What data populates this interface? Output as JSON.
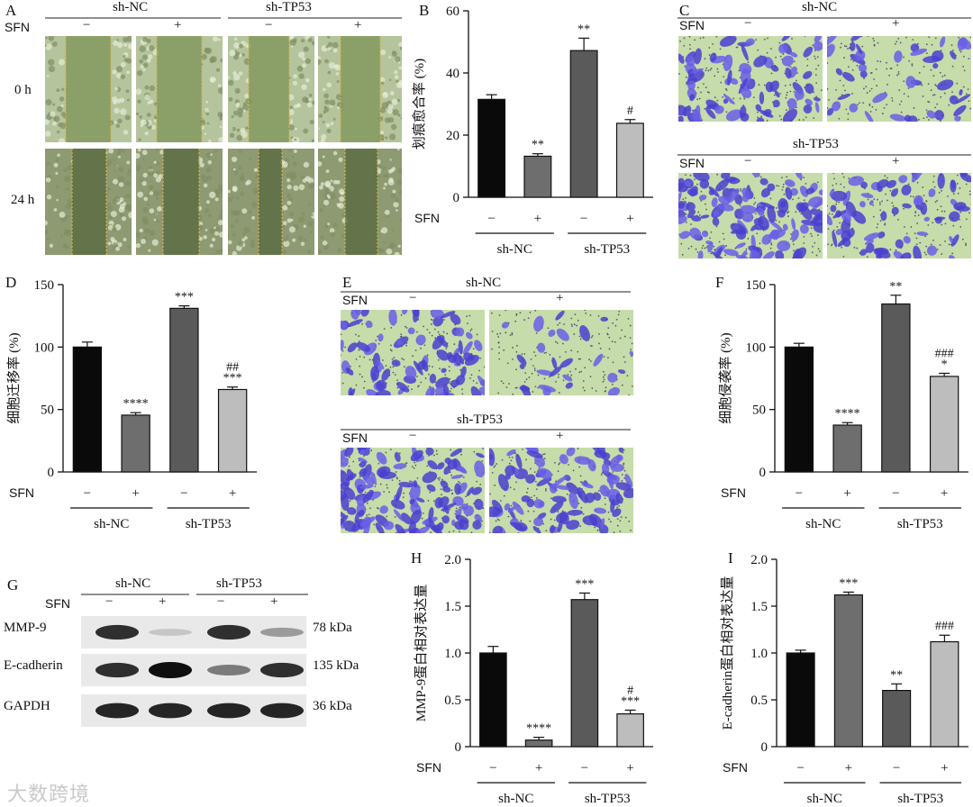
{
  "panels": {
    "A": {
      "letter": "A",
      "sfn_label": "SFN",
      "groups": [
        "sh-NC",
        "sh-TP53"
      ],
      "signs": [
        "−",
        "+",
        "−",
        "+"
      ],
      "row_labels": [
        "0 h",
        "24 h"
      ]
    },
    "C": {
      "letter": "C",
      "groups": [
        "sh-NC",
        "sh-TP53"
      ],
      "sfn_label": "SFN",
      "signs": [
        "−",
        "+"
      ]
    },
    "E": {
      "letter": "E",
      "groups": [
        "sh-NC",
        "sh-TP53"
      ],
      "sfn_label": "SFN",
      "signs": [
        "−",
        "+"
      ]
    },
    "G": {
      "letter": "G",
      "groups": [
        "sh-NC",
        "sh-TP53"
      ],
      "sfn_label": "SFN",
      "signs": [
        "−",
        "+",
        "−",
        "+"
      ],
      "bands": [
        {
          "protein": "MMP-9",
          "size": "78 kDa",
          "intensity": [
            0.85,
            0.15,
            0.85,
            0.35
          ]
        },
        {
          "protein": "E-cadherin",
          "size": "135 kDa",
          "intensity": [
            0.85,
            1.0,
            0.5,
            0.85
          ]
        },
        {
          "protein": "GAPDH",
          "size": "36 kDa",
          "intensity": [
            0.9,
            0.9,
            0.9,
            0.9
          ]
        }
      ]
    }
  },
  "chart_data": [
    {
      "id": "B",
      "letter": "B",
      "type": "bar",
      "ylabel": "划痕愈合率 (%)",
      "ylim": [
        0,
        60
      ],
      "yticks": [
        0,
        20,
        40,
        60
      ],
      "tick_labels": [
        "0",
        "20",
        "40",
        "60"
      ],
      "categories": [
        "sh-NC SFN−",
        "sh-NC SFN+",
        "sh-TP53 SFN−",
        "sh-TP53 SFN+"
      ],
      "values": [
        31.5,
        13.2,
        47.2,
        23.8
      ],
      "errors": [
        1.5,
        0.8,
        4.0,
        1.2
      ],
      "bar_colors": [
        "#0a0a0a",
        "#6e6e6e",
        "#5a5a5a",
        "#bdbdbd"
      ],
      "annotations": [
        [],
        [
          "**"
        ],
        [
          "**"
        ],
        [
          "#"
        ]
      ],
      "sfn_label": "SFN",
      "signs": [
        "−",
        "+",
        "−",
        "+"
      ],
      "groups": [
        "sh-NC",
        "sh-TP53"
      ]
    },
    {
      "id": "D",
      "letter": "D",
      "type": "bar",
      "ylabel": "细胞迁移率 (%)",
      "ylim": [
        0,
        150
      ],
      "yticks": [
        0,
        50,
        100,
        150
      ],
      "tick_labels": [
        "0",
        "50",
        "100",
        "150"
      ],
      "categories": [
        "sh-NC SFN−",
        "sh-NC SFN+",
        "sh-TP53 SFN−",
        "sh-TP53 SFN+"
      ],
      "values": [
        100,
        45.5,
        131,
        66
      ],
      "errors": [
        4,
        2,
        2,
        2
      ],
      "bar_colors": [
        "#0a0a0a",
        "#6e6e6e",
        "#5a5a5a",
        "#bdbdbd"
      ],
      "annotations": [
        [],
        [
          "****"
        ],
        [
          "***"
        ],
        [
          "***",
          "##"
        ]
      ],
      "sfn_label": "SFN",
      "signs": [
        "−",
        "+",
        "−",
        "+"
      ],
      "groups": [
        "sh-NC",
        "sh-TP53"
      ]
    },
    {
      "id": "F",
      "letter": "F",
      "type": "bar",
      "ylabel": "细胞侵袭率 (%)",
      "ylim": [
        0,
        150
      ],
      "yticks": [
        0,
        50,
        100,
        150
      ],
      "tick_labels": [
        "0",
        "50",
        "100",
        "150"
      ],
      "categories": [
        "sh-NC SFN−",
        "sh-NC SFN+",
        "sh-TP53 SFN−",
        "sh-TP53 SFN+"
      ],
      "values": [
        100,
        37.5,
        134.5,
        76.5
      ],
      "errors": [
        3,
        2,
        7,
        2.5
      ],
      "bar_colors": [
        "#0a0a0a",
        "#6e6e6e",
        "#5a5a5a",
        "#bdbdbd"
      ],
      "annotations": [
        [],
        [
          "****"
        ],
        [
          "**"
        ],
        [
          "*",
          "###"
        ]
      ],
      "sfn_label": "SFN",
      "signs": [
        "−",
        "+",
        "−",
        "+"
      ],
      "groups": [
        "sh-NC",
        "sh-TP53"
      ]
    },
    {
      "id": "H",
      "letter": "H",
      "type": "bar",
      "ylabel": "MMP-9蛋白相对表达量",
      "ylim": [
        0,
        2.0
      ],
      "yticks": [
        0,
        0.5,
        1.0,
        1.5,
        2.0
      ],
      "tick_labels": [
        "0",
        "0.5",
        "1.0",
        "1.5",
        "2.0"
      ],
      "categories": [
        "sh-NC SFN−",
        "sh-NC SFN+",
        "sh-TP53 SFN−",
        "sh-TP53 SFN+"
      ],
      "values": [
        1.0,
        0.07,
        1.57,
        0.35
      ],
      "errors": [
        0.07,
        0.03,
        0.07,
        0.04
      ],
      "bar_colors": [
        "#0a0a0a",
        "#6e6e6e",
        "#5a5a5a",
        "#bdbdbd"
      ],
      "annotations": [
        [],
        [
          "****"
        ],
        [
          "***"
        ],
        [
          "***",
          "#"
        ]
      ],
      "sfn_label": "SFN",
      "signs": [
        "−",
        "+",
        "−",
        "+"
      ],
      "groups": [
        "sh-NC",
        "sh-TP53"
      ]
    },
    {
      "id": "I",
      "letter": "I",
      "type": "bar",
      "ylabel": "E-cadherin蛋白相对表达量",
      "ylim": [
        0,
        2.0
      ],
      "yticks": [
        0,
        0.5,
        1.0,
        1.5,
        2.0
      ],
      "tick_labels": [
        "0",
        "0.5",
        "1.0",
        "1.5",
        "2.0"
      ],
      "categories": [
        "sh-NC SFN−",
        "sh-NC SFN+",
        "sh-TP53 SFN−",
        "sh-TP53 SFN+"
      ],
      "values": [
        1.0,
        1.62,
        0.6,
        1.12
      ],
      "errors": [
        0.03,
        0.03,
        0.07,
        0.07
      ],
      "bar_colors": [
        "#0a0a0a",
        "#6e6e6e",
        "#5a5a5a",
        "#bdbdbd"
      ],
      "annotations": [
        [],
        [
          "***"
        ],
        [
          "**"
        ],
        [
          "###"
        ]
      ],
      "sfn_label": "SFN",
      "signs": [
        "−",
        "+",
        "−",
        "+"
      ],
      "groups": [
        "sh-NC",
        "sh-TP53"
      ]
    }
  ],
  "watermark": "大数跨境"
}
